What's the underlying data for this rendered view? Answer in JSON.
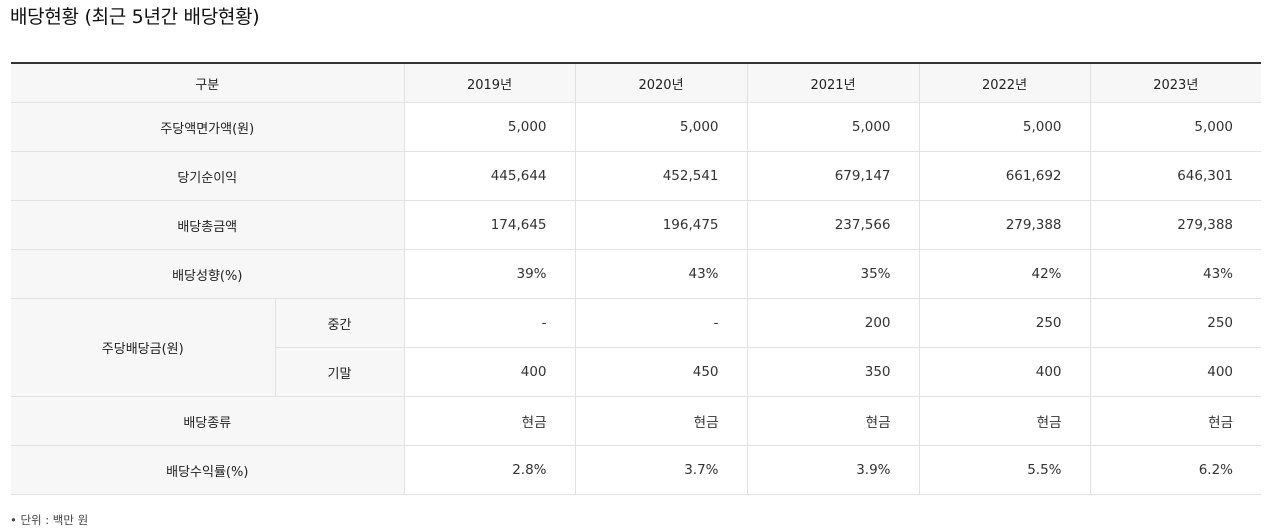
{
  "title": "배당현황 (최근 5년간 배당현황)",
  "table": {
    "header": {
      "category": "구분",
      "years": [
        "2019년",
        "2020년",
        "2021년",
        "2022년",
        "2023년"
      ]
    },
    "rows": {
      "par_value": {
        "label": "주당액면가액(원)",
        "values": [
          "5,000",
          "5,000",
          "5,000",
          "5,000",
          "5,000"
        ]
      },
      "net_income": {
        "label": "당기순이익",
        "values": [
          "445,644",
          "452,541",
          "679,147",
          "661,692",
          "646,301"
        ]
      },
      "total_dividend": {
        "label": "배당총금액",
        "values": [
          "174,645",
          "196,475",
          "237,566",
          "279,388",
          "279,388"
        ]
      },
      "payout_ratio": {
        "label": "배당성향(%)",
        "values": [
          "39%",
          "43%",
          "35%",
          "42%",
          "43%"
        ]
      },
      "dps": {
        "label": "주당배당금(원)",
        "interim": {
          "label": "중간",
          "values": [
            "-",
            "-",
            "200",
            "250",
            "250"
          ]
        },
        "year_end": {
          "label": "기말",
          "values": [
            "400",
            "450",
            "350",
            "400",
            "400"
          ]
        }
      },
      "dividend_type": {
        "label": "배당종류",
        "values": [
          "현금",
          "현금",
          "현금",
          "현금",
          "현금"
        ]
      },
      "dividend_yield": {
        "label": "배당수익률(%)",
        "values": [
          "2.8%",
          "3.7%",
          "3.9%",
          "5.5%",
          "6.2%"
        ]
      }
    }
  },
  "note": "• 단위 : 백만 원"
}
